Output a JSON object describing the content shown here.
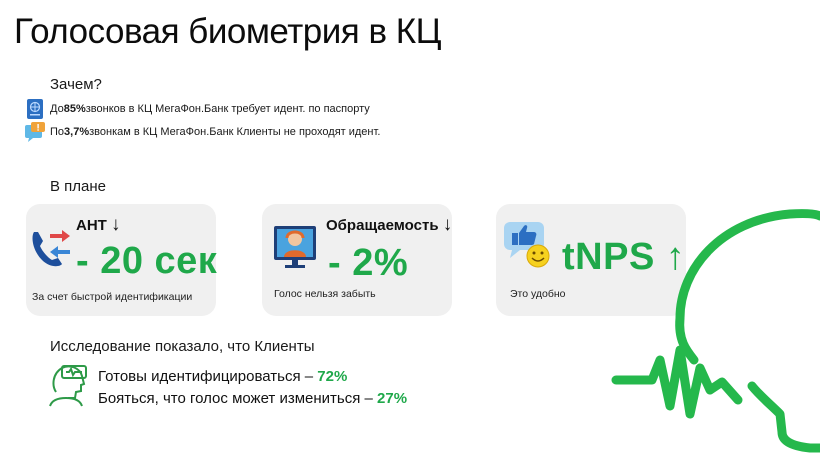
{
  "title": "Голосовая биометрия в КЦ",
  "why": {
    "heading": "Зачем?",
    "items": [
      {
        "icon": "passport-icon",
        "prefix": "До ",
        "highlight": "85%",
        "text": " звонков в КЦ МегаФон.Банк требует идент. по паспорту"
      },
      {
        "icon": "chat-warning-icon",
        "prefix": "По ",
        "highlight": "3,7%",
        "text": " звонкам в КЦ МегаФон.Банк Клиенты не проходят идент."
      }
    ]
  },
  "plan": {
    "heading": "В плане",
    "cards": [
      {
        "icon": "phone-transfer-icon",
        "title": "АНТ",
        "arrow": "↓",
        "value": "- 20 сек",
        "caption": "За счет быстрой идентификации"
      },
      {
        "icon": "operator-monitor-icon",
        "title": "Обращаемость",
        "arrow": "↓",
        "value": "- 2%",
        "caption": "Голос нельзя забыть"
      },
      {
        "icon": "thumbs-up-smiley-icon",
        "title": "",
        "arrow": "↑",
        "value": "tNPS",
        "caption": "Это удобно"
      }
    ]
  },
  "research": {
    "heading": "Исследование показало, что Клиенты",
    "lines": [
      {
        "text": "Готовы идентифицироваться – ",
        "value": "72%"
      },
      {
        "text": "Бояться, что голос может измениться – ",
        "value": "27%"
      }
    ]
  },
  "colors": {
    "accent": "#1fa84a",
    "card_bg": "#f0f0f0"
  }
}
